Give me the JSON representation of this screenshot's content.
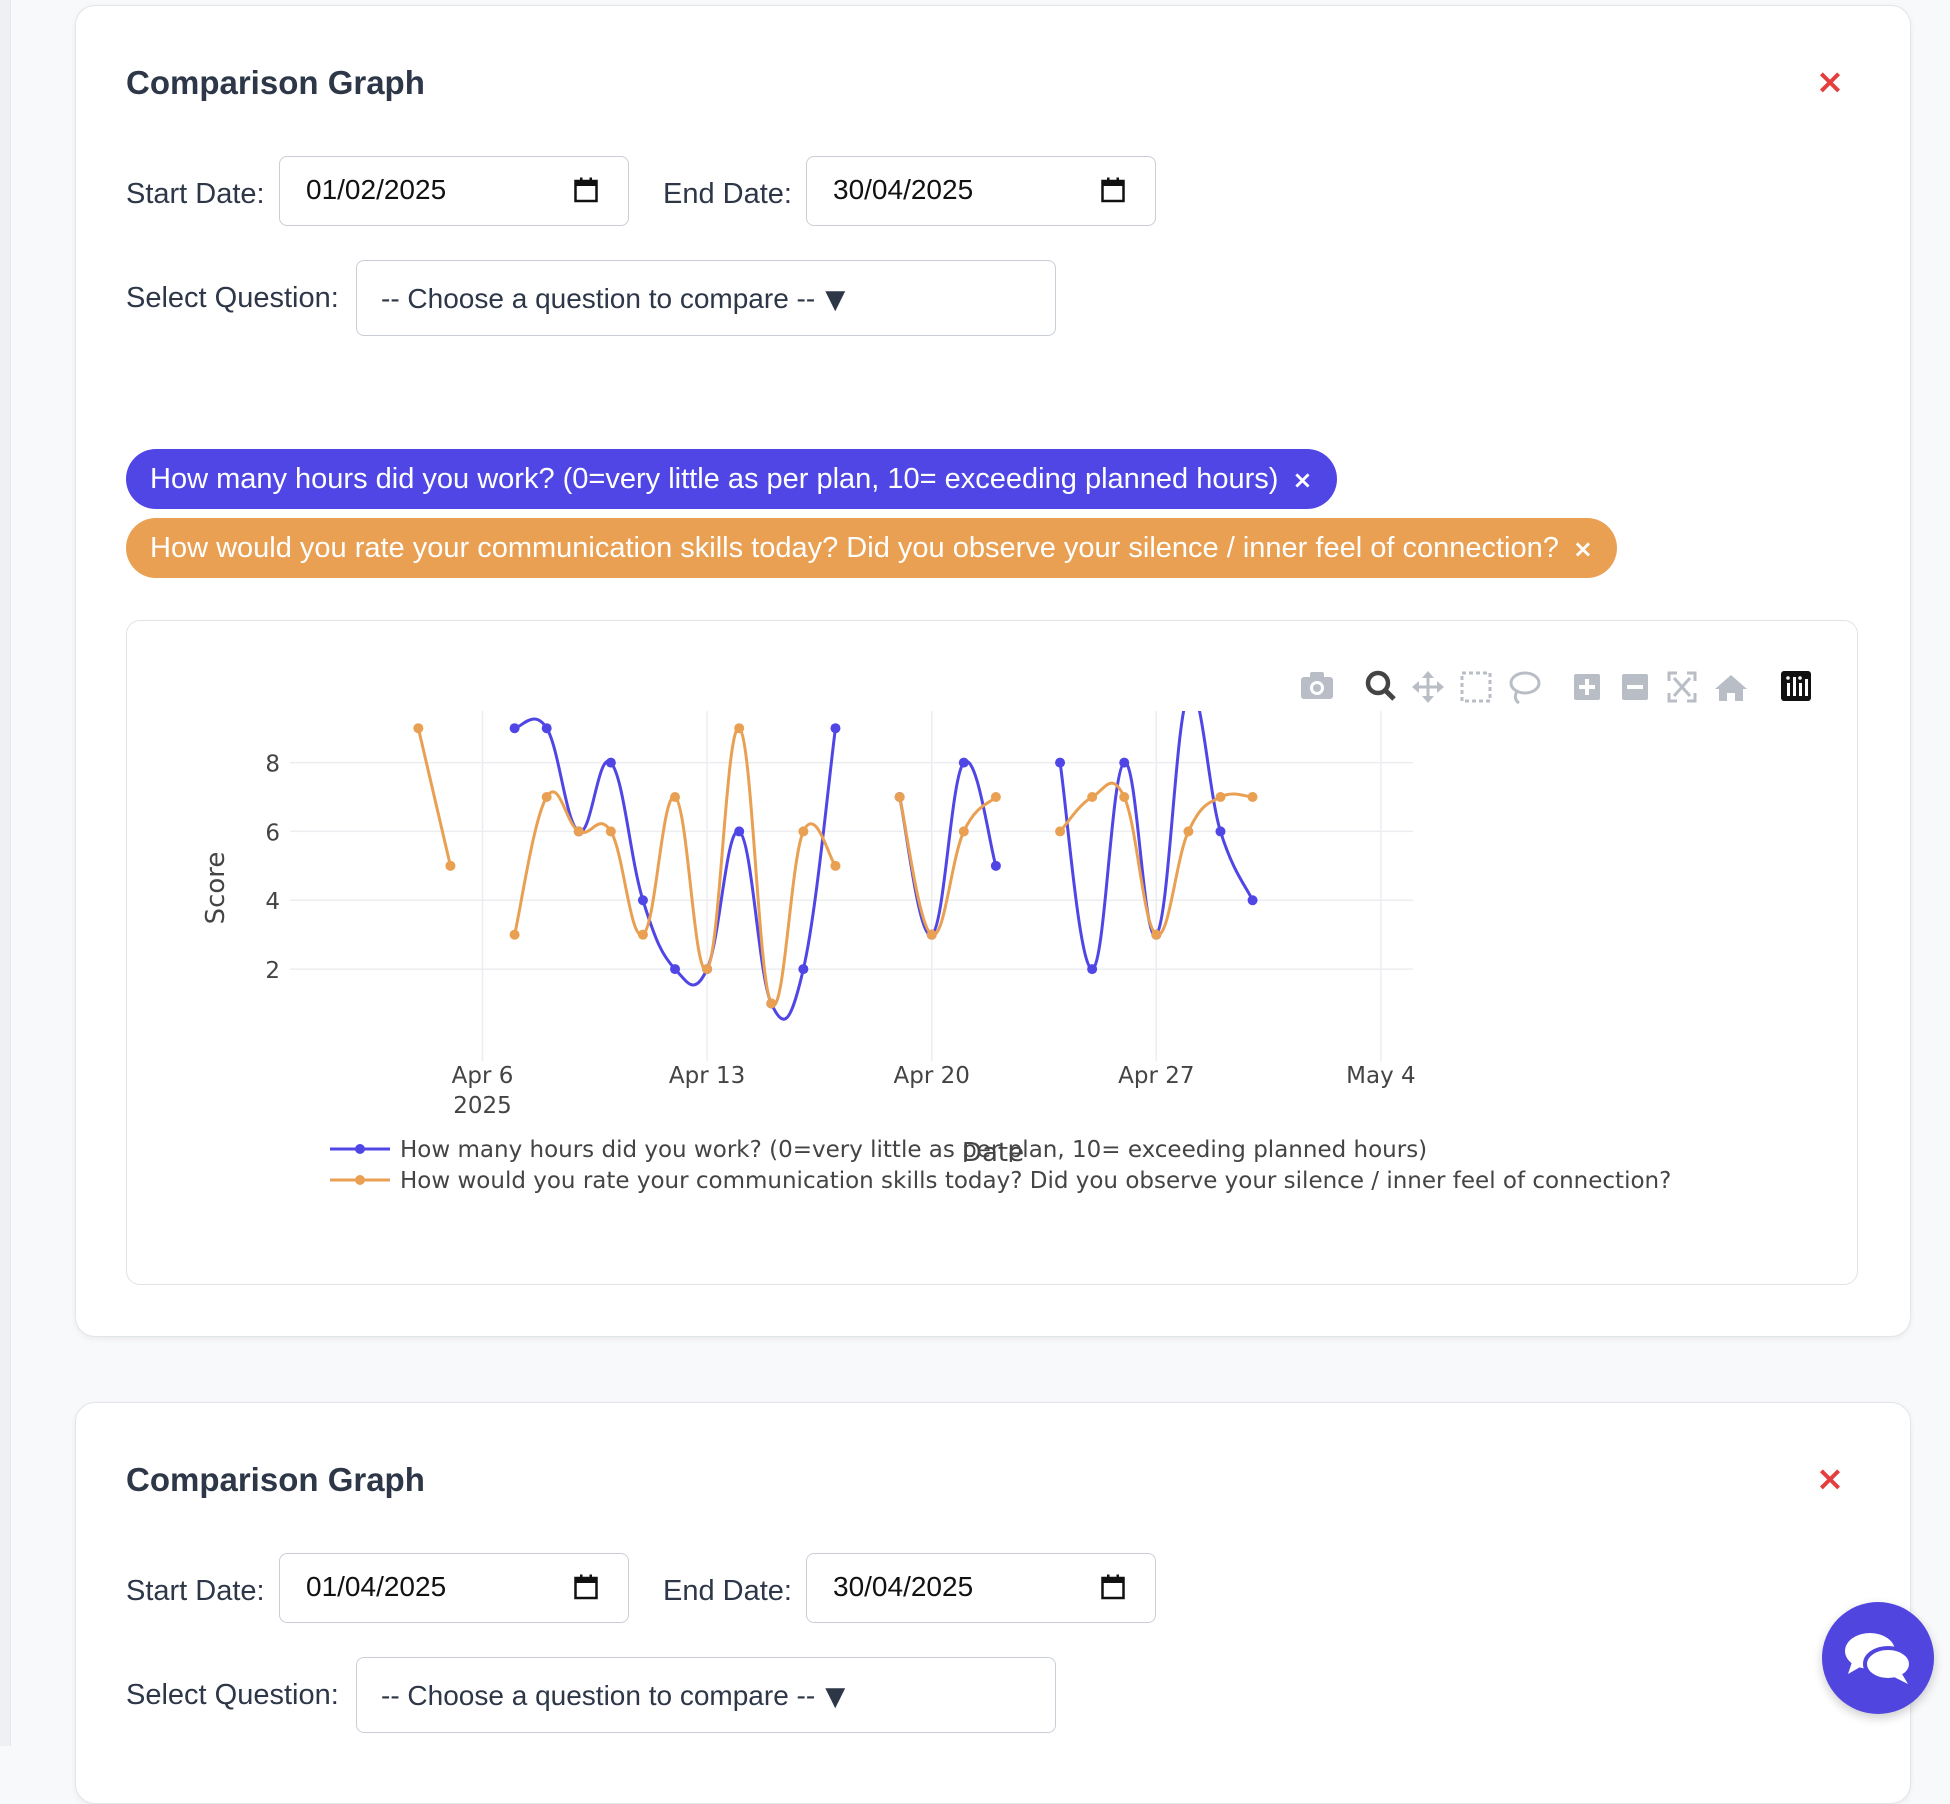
{
  "cards": [
    {
      "title": "Comparison Graph",
      "close_label": "×",
      "start_label": "Start Date:",
      "start_value": "01/02/2025",
      "end_label": "End Date:",
      "end_value": "30/04/2025",
      "question_label": "Select Question:",
      "question_placeholder": "-- Choose a question to compare --",
      "caret": "▼"
    },
    {
      "title": "Comparison Graph",
      "close_label": "×",
      "start_label": "Start Date:",
      "start_value": "01/04/2025",
      "end_label": "End Date:",
      "end_value": "30/04/2025",
      "question_label": "Select Question:",
      "question_placeholder": "-- Choose a question to compare --",
      "caret": "▼"
    }
  ],
  "chips": [
    {
      "text": "How many hours did you work? (0=very little as per plan, 10= exceeding planned hours)",
      "remove": "×",
      "color": "#4f46e5"
    },
    {
      "text": "How would you rate your communication skills today? Did you observe your silence / inner feel of connection?",
      "remove": "×",
      "color": "#e9a052"
    }
  ],
  "toolbar_icons": [
    "camera-icon",
    "zoom-icon",
    "pan-icon",
    "box-select-icon",
    "lasso-icon",
    "zoom-in-icon",
    "zoom-out-icon",
    "autoscale-icon",
    "reset-axes-icon",
    "plotly-logo-icon"
  ],
  "chat_icon": "chat-bubbles-icon",
  "chart_data": {
    "type": "line",
    "xlabel": "Date",
    "ylabel": "Score",
    "ylim": [
      0.2,
      9.5
    ],
    "xlim": [
      "2025-03-31",
      "2025-05-05"
    ],
    "x_ticks": [
      {
        "date": "2025-04-06",
        "label": "Apr 6",
        "sub": "2025"
      },
      {
        "date": "2025-04-13",
        "label": "Apr 13",
        "sub": ""
      },
      {
        "date": "2025-04-20",
        "label": "Apr 20",
        "sub": ""
      },
      {
        "date": "2025-04-27",
        "label": "Apr 27",
        "sub": ""
      },
      {
        "date": "2025-05-04",
        "label": "May 4",
        "sub": ""
      }
    ],
    "y_ticks": [
      2,
      4,
      6,
      8
    ],
    "grid": true,
    "legend_position": "bottom",
    "series": [
      {
        "name": "How many hours did you work? (0=very little as per plan, 10= exceeding planned hours)",
        "color": "#4f46e5",
        "segments": [
          [
            [
              "2025-04-07",
              9
            ],
            [
              "2025-04-08",
              9
            ],
            [
              "2025-04-09",
              6
            ],
            [
              "2025-04-10",
              8
            ],
            [
              "2025-04-11",
              4
            ],
            [
              "2025-04-12",
              2
            ],
            [
              "2025-04-13",
              2
            ],
            [
              "2025-04-14",
              6
            ],
            [
              "2025-04-15",
              1
            ],
            [
              "2025-04-16",
              2
            ],
            [
              "2025-04-17",
              9
            ]
          ],
          [
            [
              "2025-04-19",
              7
            ],
            [
              "2025-04-20",
              3
            ],
            [
              "2025-04-21",
              8
            ],
            [
              "2025-04-22",
              5
            ]
          ],
          [
            [
              "2025-04-24",
              8
            ],
            [
              "2025-04-25",
              2
            ],
            [
              "2025-04-26",
              8
            ],
            [
              "2025-04-27",
              3
            ],
            [
              "2025-04-28",
              10
            ],
            [
              "2025-04-29",
              6
            ],
            [
              "2025-04-30",
              4
            ]
          ]
        ]
      },
      {
        "name": "How would you rate your communication skills today? Did you observe your silence / inner feel of connection?",
        "color": "#e9a052",
        "segments": [
          [
            [
              "2025-04-04",
              9
            ],
            [
              "2025-04-05",
              5
            ]
          ],
          [
            [
              "2025-04-07",
              3
            ],
            [
              "2025-04-08",
              7
            ],
            [
              "2025-04-09",
              6
            ],
            [
              "2025-04-10",
              6
            ],
            [
              "2025-04-11",
              3
            ],
            [
              "2025-04-12",
              7
            ],
            [
              "2025-04-13",
              2
            ],
            [
              "2025-04-14",
              9
            ],
            [
              "2025-04-15",
              1
            ],
            [
              "2025-04-16",
              6
            ],
            [
              "2025-04-17",
              5
            ]
          ],
          [
            [
              "2025-04-19",
              7
            ],
            [
              "2025-04-20",
              3
            ],
            [
              "2025-04-21",
              6
            ],
            [
              "2025-04-22",
              7
            ]
          ],
          [
            [
              "2025-04-24",
              6
            ],
            [
              "2025-04-25",
              7
            ],
            [
              "2025-04-26",
              7
            ],
            [
              "2025-04-27",
              3
            ],
            [
              "2025-04-28",
              6
            ],
            [
              "2025-04-29",
              7
            ],
            [
              "2025-04-30",
              7
            ]
          ]
        ]
      }
    ]
  }
}
